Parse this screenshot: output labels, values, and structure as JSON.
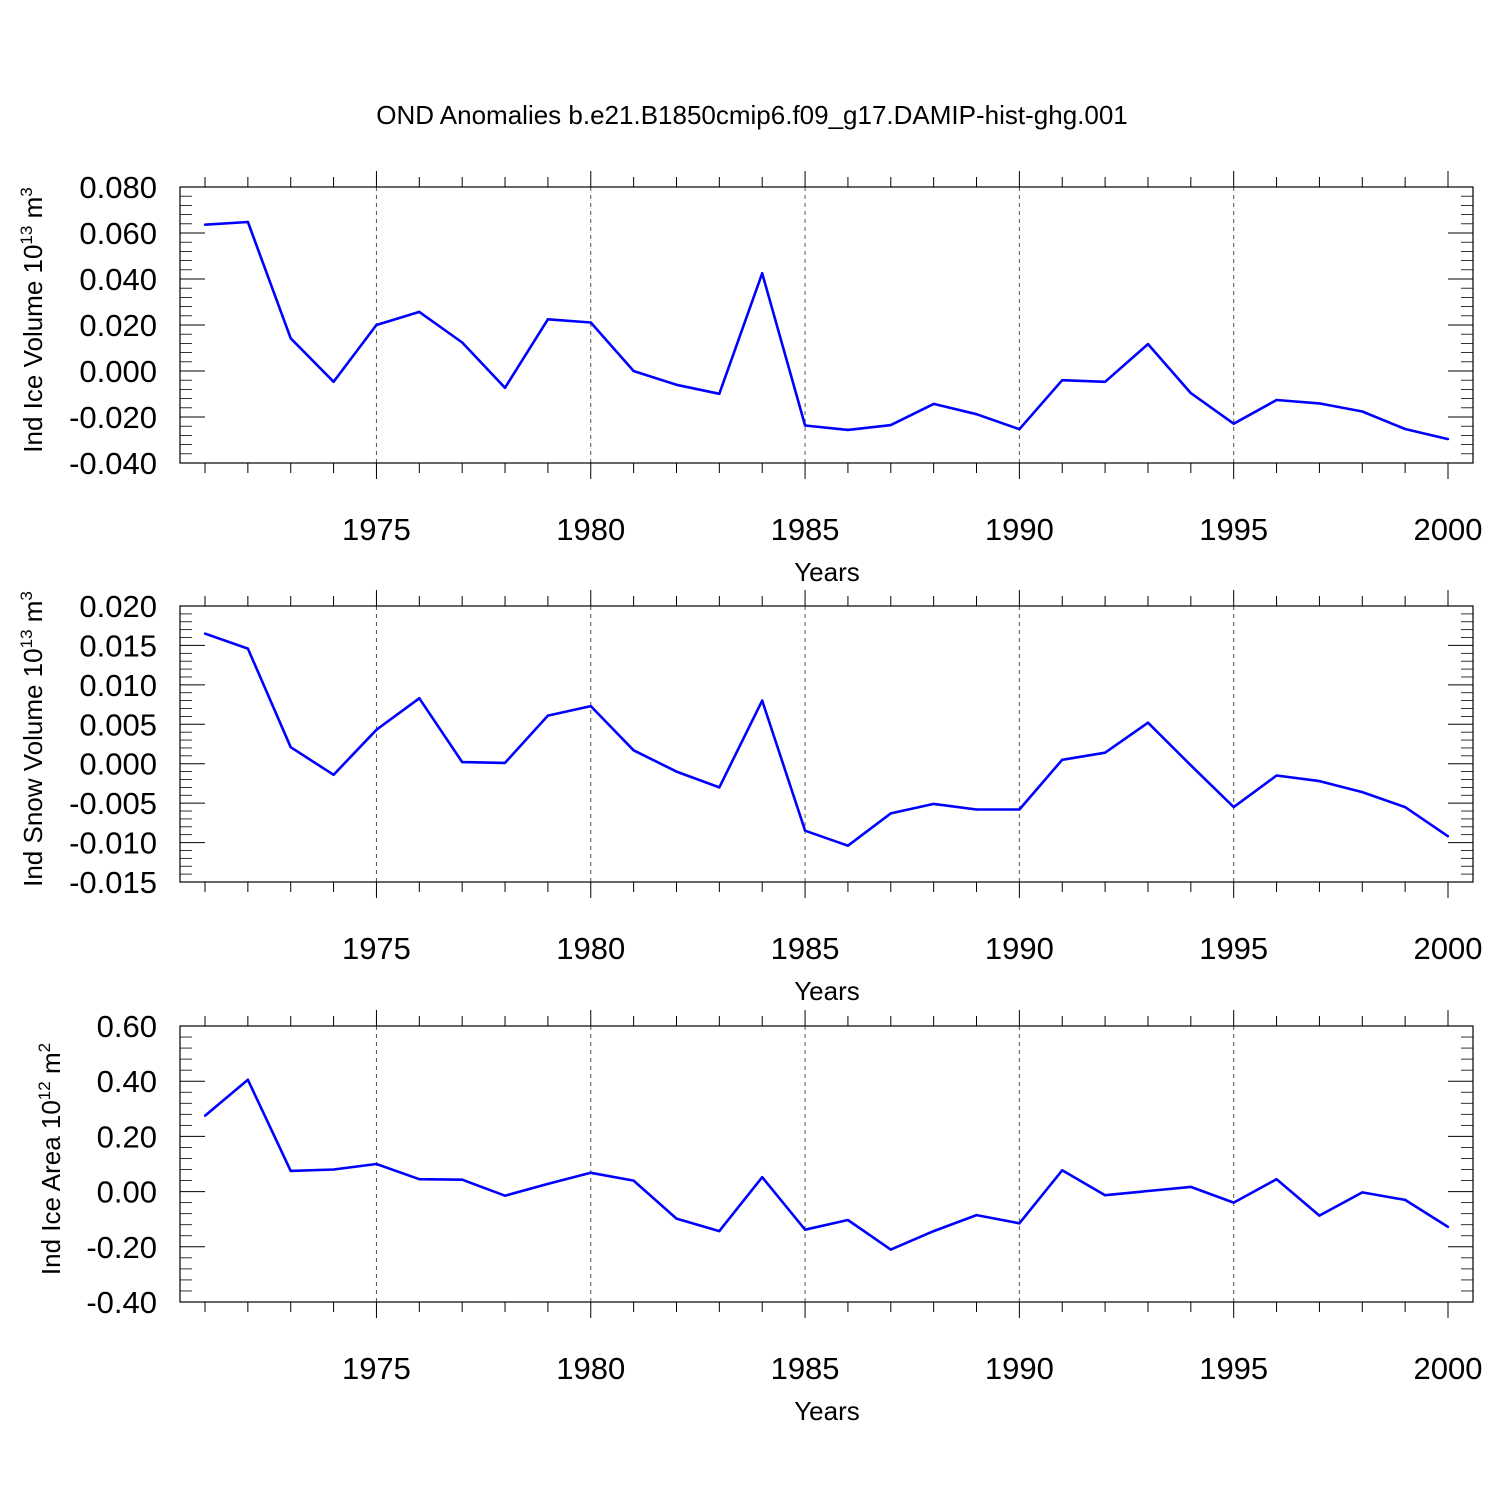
{
  "title": "OND Anomalies b.e21.B1850cmip6.f09_g17.DAMIP-hist-ghg.001",
  "line_color": "#0000ff",
  "chart_data": [
    {
      "type": "line",
      "ylabel_main": "Ind Ice Volume 10",
      "ylabel_exp": "13",
      "ylabel_unit": " m",
      "ylabel_unit_exp": "3",
      "xlabel": "Years",
      "xlim": [
        1971,
        2000
      ],
      "ylim": [
        -0.04,
        0.08
      ],
      "yticks": [
        -0.04,
        -0.02,
        0.0,
        0.02,
        0.04,
        0.06,
        0.08
      ],
      "yticklabels": [
        "-0.040",
        "-0.020",
        "0.000",
        "0.020",
        "0.040",
        "0.060",
        "0.080"
      ],
      "xticks": [
        1975,
        1980,
        1985,
        1990,
        1995,
        2000
      ],
      "xticklabels": [
        "1975",
        "1980",
        "1985",
        "1990",
        "1995",
        "2000"
      ],
      "grid": "vertical dashed at major x ticks",
      "x": [
        1971,
        1972,
        1973,
        1974,
        1975,
        1976,
        1977,
        1978,
        1979,
        1980,
        1981,
        1982,
        1983,
        1984,
        1985,
        1986,
        1987,
        1988,
        1989,
        1990,
        1991,
        1992,
        1993,
        1994,
        1995,
        1996,
        1997,
        1998,
        1999,
        2000
      ],
      "values": [
        0.0636,
        0.0648,
        0.0142,
        -0.0047,
        0.02,
        0.0257,
        0.0124,
        -0.0073,
        0.0225,
        0.0211,
        0.0,
        -0.006,
        -0.0099,
        0.0425,
        -0.0237,
        -0.0256,
        -0.0235,
        -0.0143,
        -0.0188,
        -0.0253,
        -0.004,
        -0.0047,
        0.0117,
        -0.0096,
        -0.0229,
        -0.0126,
        -0.0141,
        -0.0176,
        -0.0252,
        -0.0296
      ]
    },
    {
      "type": "line",
      "ylabel_main": "Ind Snow Volume 10",
      "ylabel_exp": "13",
      "ylabel_unit": " m",
      "ylabel_unit_exp": "3",
      "xlabel": "Years",
      "xlim": [
        1971,
        2000
      ],
      "ylim": [
        -0.015,
        0.02
      ],
      "yticks": [
        -0.015,
        -0.01,
        -0.005,
        0.0,
        0.005,
        0.01,
        0.015,
        0.02
      ],
      "yticklabels": [
        "-0.015",
        "-0.010",
        "-0.005",
        "0.000",
        "0.005",
        "0.010",
        "0.015",
        "0.020"
      ],
      "xticks": [
        1975,
        1980,
        1985,
        1990,
        1995,
        2000
      ],
      "xticklabels": [
        "1975",
        "1980",
        "1985",
        "1990",
        "1995",
        "2000"
      ],
      "grid": "vertical dashed at major x ticks",
      "x": [
        1971,
        1972,
        1973,
        1974,
        1975,
        1976,
        1977,
        1978,
        1979,
        1980,
        1981,
        1982,
        1983,
        1984,
        1985,
        1986,
        1987,
        1988,
        1989,
        1990,
        1991,
        1992,
        1993,
        1994,
        1995,
        1996,
        1997,
        1998,
        1999,
        2000
      ],
      "values": [
        0.0165,
        0.0146,
        0.0021,
        -0.0014,
        0.0043,
        0.0083,
        0.0002,
        0.0001,
        0.0061,
        0.0073,
        0.0017,
        -0.001,
        -0.003,
        0.008,
        -0.0085,
        -0.0104,
        -0.0063,
        -0.0051,
        -0.0058,
        -0.0058,
        0.0005,
        0.0014,
        0.0052,
        -0.0002,
        -0.0055,
        -0.0015,
        -0.0022,
        -0.0036,
        -0.0055,
        -0.0092
      ]
    },
    {
      "type": "line",
      "ylabel_main": "Ind Ice Area 10",
      "ylabel_exp": "12",
      "ylabel_unit": " m",
      "ylabel_unit_exp": "2",
      "xlabel": "Years",
      "xlim": [
        1971,
        2000
      ],
      "ylim": [
        -0.4,
        0.6
      ],
      "yticks": [
        -0.4,
        -0.2,
        0.0,
        0.2,
        0.4,
        0.6
      ],
      "yticklabels": [
        "-0.40",
        "-0.20",
        "0.00",
        "0.20",
        "0.40",
        "0.60"
      ],
      "xticks": [
        1975,
        1980,
        1985,
        1990,
        1995,
        2000
      ],
      "xticklabels": [
        "1975",
        "1980",
        "1985",
        "1990",
        "1995",
        "2000"
      ],
      "grid": "vertical dashed at major x ticks",
      "x": [
        1971,
        1972,
        1973,
        1974,
        1975,
        1976,
        1977,
        1978,
        1979,
        1980,
        1981,
        1982,
        1983,
        1984,
        1985,
        1986,
        1987,
        1988,
        1989,
        1990,
        1991,
        1992,
        1993,
        1994,
        1995,
        1996,
        1997,
        1998,
        1999,
        2000
      ],
      "values": [
        0.275,
        0.405,
        0.075,
        0.08,
        0.1,
        0.045,
        0.043,
        -0.015,
        0.028,
        0.068,
        0.04,
        -0.098,
        -0.143,
        0.052,
        -0.138,
        -0.103,
        -0.21,
        -0.143,
        -0.085,
        -0.115,
        0.077,
        -0.013,
        0.002,
        0.017,
        -0.04,
        0.045,
        -0.087,
        -0.003,
        -0.03,
        -0.128
      ]
    }
  ]
}
